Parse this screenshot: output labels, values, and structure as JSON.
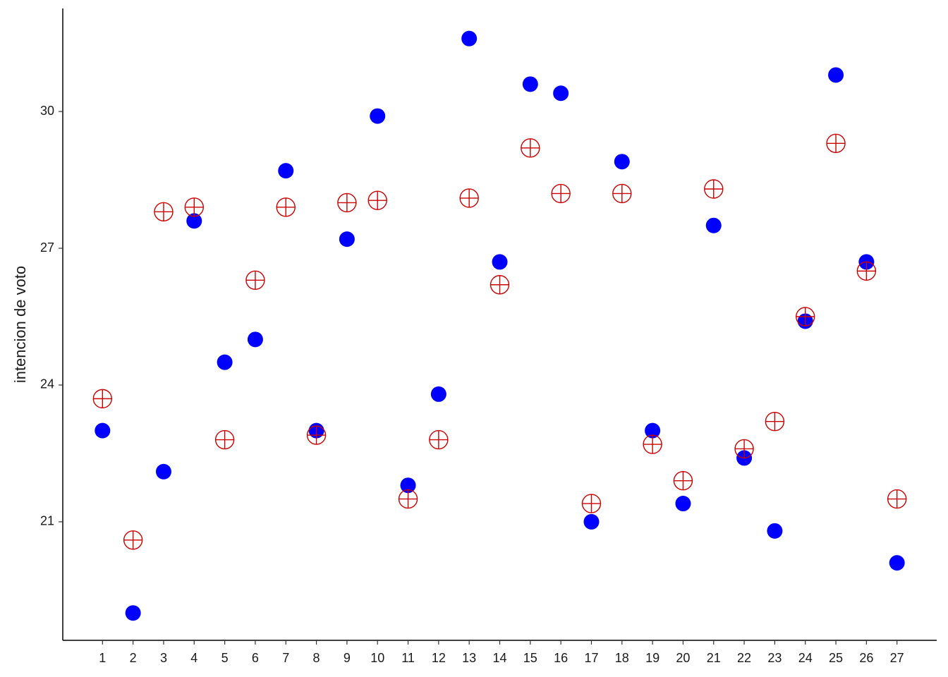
{
  "chart_data": {
    "type": "scatter",
    "y_label": "intencion de voto",
    "x": [
      1,
      2,
      3,
      4,
      5,
      6,
      7,
      8,
      9,
      10,
      11,
      12,
      13,
      14,
      15,
      16,
      17,
      18,
      19,
      20,
      21,
      22,
      23,
      24,
      25,
      26,
      27
    ],
    "xlim": [
      -0.3,
      28.3
    ],
    "xticks": [
      1,
      2,
      3,
      4,
      5,
      6,
      7,
      8,
      9,
      10,
      11,
      12,
      13,
      14,
      15,
      16,
      17,
      18,
      19,
      20,
      21,
      22,
      23,
      24,
      25,
      26,
      27
    ],
    "ylim": [
      18.4,
      32.26
    ],
    "yticks": [
      21,
      24,
      27,
      30
    ],
    "grid": false,
    "series": [
      {
        "color": "#0000ff",
        "marker": "filled-circle",
        "values": [
          23.0,
          19.0,
          22.1,
          27.6,
          24.5,
          25.0,
          28.7,
          23.0,
          27.2,
          29.9,
          21.8,
          23.8,
          31.6,
          26.7,
          30.6,
          30.4,
          21.0,
          28.9,
          23.0,
          21.4,
          27.5,
          22.4,
          20.8,
          25.4,
          30.8,
          26.7,
          20.1
        ]
      },
      {
        "color": "#cc0000",
        "marker": "circle-cross",
        "values": [
          23.7,
          20.6,
          27.8,
          27.9,
          22.8,
          26.3,
          27.9,
          22.9,
          28.0,
          28.05,
          21.5,
          22.8,
          28.1,
          26.2,
          29.2,
          28.2,
          21.4,
          28.2,
          22.7,
          21.9,
          28.3,
          22.6,
          23.2,
          25.5,
          29.3,
          26.5,
          21.5
        ]
      }
    ]
  }
}
